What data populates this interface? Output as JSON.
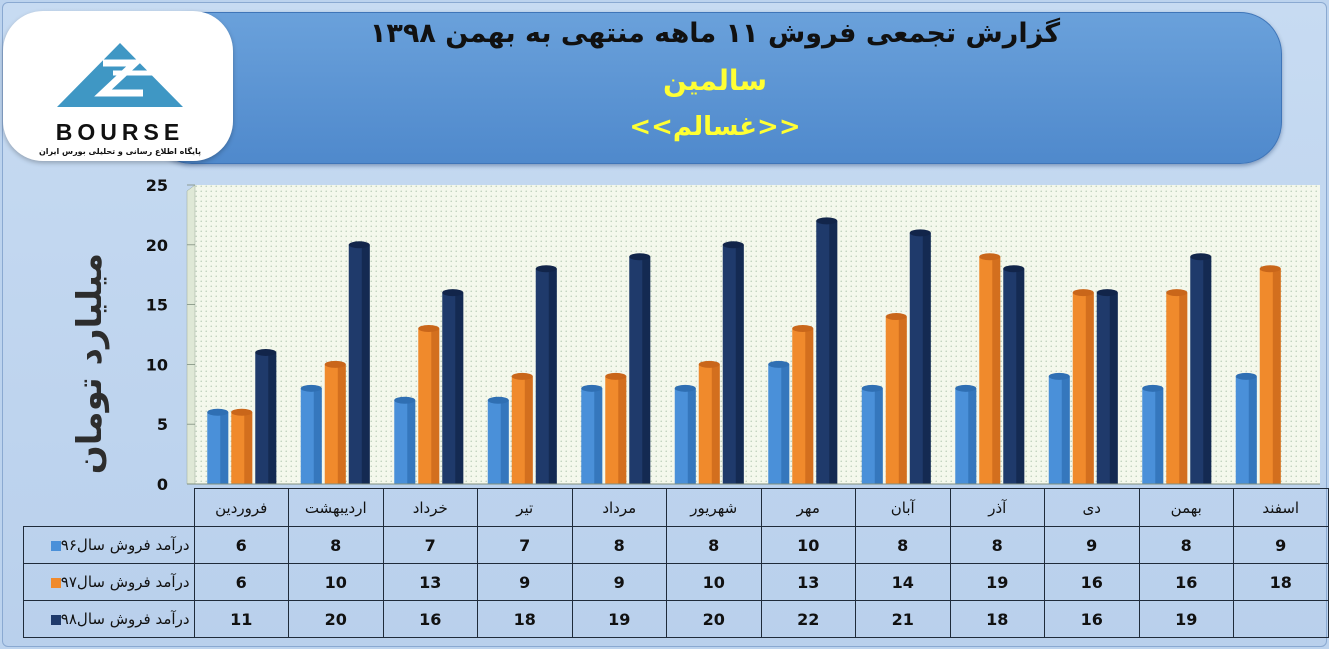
{
  "header": {
    "title": "گزارش تجمعی فروش ۱۱ ماهه منتهی به بهمن ۱۳۹۸",
    "subtitle": "سالمین",
    "code": "<<غسالم>>"
  },
  "logo": {
    "text": "BOURSE",
    "subtext": "پایگاه اطلاع رسانی و تحلیلی بورس ایران"
  },
  "colors": {
    "series96": "#4a90d9",
    "series97": "#f08a2c",
    "series98": "#1f3a6b",
    "banner": "#5a93d3",
    "plot_bg": "#f4f8ec"
  },
  "chart_data": {
    "type": "bar",
    "title": "گزارش تجمعی فروش ۱۱ ماهه منتهی به بهمن ۱۳۹۸",
    "ylabel": "میلیارد تومان",
    "ylim": [
      0,
      25
    ],
    "yticks": [
      "0",
      "5",
      "10",
      "15",
      "20",
      "25"
    ],
    "grid": true,
    "categories": [
      "فروردین",
      "اردیبهشت",
      "خرداد",
      "تیر",
      "مرداد",
      "شهریور",
      "مهر",
      "آبان",
      "آذر",
      "دی",
      "بهمن",
      "اسفند"
    ],
    "series": [
      {
        "name": "درآمد فروش سال۹۶",
        "values": [
          6,
          8,
          7,
          7,
          8,
          8,
          10,
          8,
          8,
          9,
          8,
          9
        ]
      },
      {
        "name": "درآمد فروش سال۹۷",
        "values": [
          6,
          10,
          13,
          9,
          9,
          10,
          13,
          14,
          19,
          16,
          16,
          18
        ]
      },
      {
        "name": "درآمد فروش سال۹۸",
        "values": [
          11,
          20,
          16,
          18,
          19,
          20,
          22,
          21,
          18,
          16,
          19,
          null
        ]
      }
    ]
  }
}
